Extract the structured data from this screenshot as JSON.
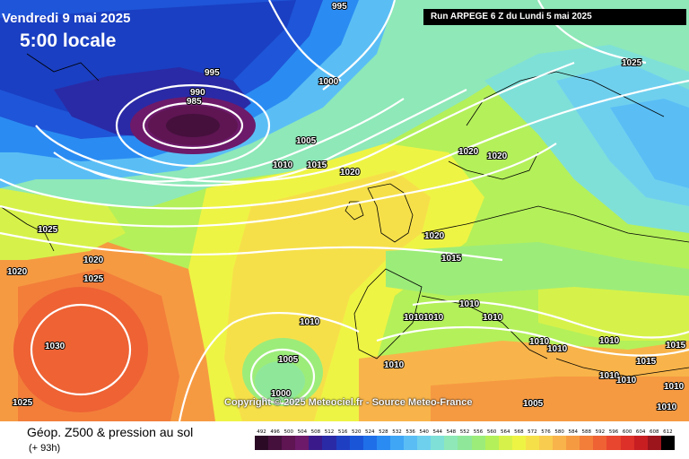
{
  "header": {
    "date": "Vendredi 9 mai 2025",
    "time": "5:00 locale",
    "run": "Run ARPEGE 6 Z du Lundi 5 mai 2025"
  },
  "copyright": "Copyright © 2025 Meteociel.fr - Source Meteo-France",
  "footer": {
    "title": "Géop. Z500 & pression au sol",
    "subtitle": "(+ 93h)"
  },
  "scale": {
    "labels": [
      "492",
      "496",
      "500",
      "504",
      "508",
      "512",
      "516",
      "520",
      "524",
      "528",
      "532",
      "536",
      "540",
      "544",
      "548",
      "552",
      "556",
      "560",
      "564",
      "568",
      "572",
      "576",
      "580",
      "584",
      "588",
      "592",
      "596",
      "600",
      "604",
      "608",
      "612"
    ],
    "colors": [
      "#2b0a26",
      "#45103c",
      "#5e1552",
      "#6d1a6a",
      "#3a1a8a",
      "#2a2aa6",
      "#1f3fc2",
      "#1a55d8",
      "#1f6fe8",
      "#2a8cf2",
      "#3fa6f6",
      "#5abef5",
      "#6fd0ee",
      "#7fe0d8",
      "#8ee8b8",
      "#8fe89a",
      "#9cec7a",
      "#b4f05a",
      "#d6f24a",
      "#eef444",
      "#f6e04a",
      "#f8cc4e",
      "#f8b44a",
      "#f69a42",
      "#f27e3a",
      "#ee6234",
      "#e8462e",
      "#dc3028",
      "#c81e22",
      "#9c141c",
      "#000000"
    ]
  },
  "isobars": [
    "995",
    "995",
    "1000",
    "990",
    "985",
    "1005",
    "1010",
    "1015",
    "1020",
    "1020",
    "1020",
    "1025",
    "1025",
    "1020",
    "1020",
    "1025",
    "1020",
    "1015",
    "1030",
    "1010",
    "1010",
    "1010",
    "1010",
    "1010",
    "1010",
    "1010",
    "1005",
    "1000",
    "1010",
    "1005",
    "1010",
    "1010",
    "1010",
    "1010",
    "1015",
    "1015",
    "1010",
    "1025"
  ]
}
